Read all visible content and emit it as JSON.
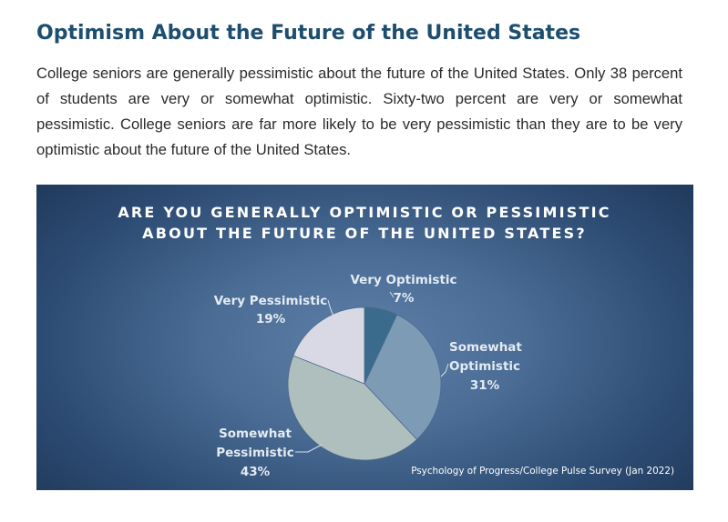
{
  "heading": "Optimism About the Future of the United States",
  "intro": "College seniors are generally pessimistic about the future of the United States. Only 38 percent of students are very or somewhat optimistic. Sixty-two percent are very or somewhat pessimistic. College seniors are far more likely to be very pessimistic than they are to be very optimistic about the future of the United States.",
  "chart_data": {
    "type": "pie",
    "title": "ARE YOU GENERALLY OPTIMISTIC OR PESSIMISTIC ABOUT THE FUTURE OF THE UNITED STATES?",
    "title_lines": [
      "ARE YOU GENERALLY OPTIMISTIC OR PESSIMISTIC",
      "ABOUT THE FUTURE OF THE UNITED STATES?"
    ],
    "slices": [
      {
        "label": "Very Optimistic",
        "value": 7,
        "value_label": "7%",
        "label_lines": [
          "Very Optimistic"
        ],
        "color": "#3a6b8d"
      },
      {
        "label": "Somewhat Optimistic",
        "value": 31,
        "value_label": "31%",
        "label_lines": [
          "Somewhat",
          "Optimistic"
        ],
        "color": "#7d9bb5"
      },
      {
        "label": "Somewhat Pessimistic",
        "value": 43,
        "value_label": "43%",
        "label_lines": [
          "Somewhat",
          "Pessimistic"
        ],
        "color": "#aebfbe"
      },
      {
        "label": "Very Pessimistic",
        "value": 19,
        "value_label": "19%",
        "label_lines": [
          "Very Pessimistic"
        ],
        "color": "#d8d9e4"
      }
    ],
    "source": "Psychology of Progress/College Pulse Survey (Jan 2022)"
  }
}
